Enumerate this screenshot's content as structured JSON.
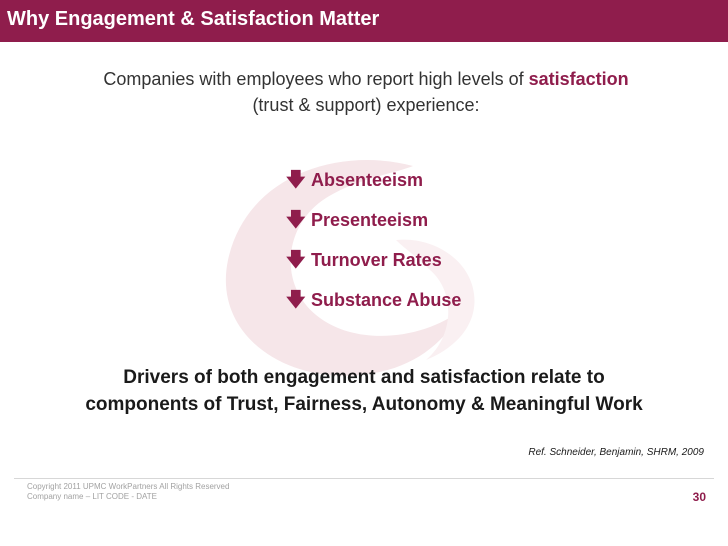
{
  "slide": {
    "title": "Why Engagement & Satisfaction Matter",
    "intro": {
      "before": "Companies with employees who report high levels of ",
      "highlight": "satisfaction",
      "after": "(trust & support) experience:"
    },
    "effects": [
      {
        "icon": "arrow-down-icon",
        "label": "Absenteeism"
      },
      {
        "icon": "arrow-down-icon",
        "label": "Presenteeism"
      },
      {
        "icon": "arrow-down-icon",
        "label": "Turnover Rates"
      },
      {
        "icon": "arrow-down-icon",
        "label": "Substance Abuse"
      }
    ],
    "drivers": {
      "line1": "Drivers of both engagement and satisfaction relate to",
      "line2": "components of Trust, Fairness, Autonomy & Meaningful Work"
    },
    "reference": "Ref. Schneider, Benjamin, SHRM, 2009",
    "footer": {
      "copyright_line1": "Copyright 2011 UPMC WorkPartners All Rights Reserved",
      "copyright_line2": "Company name – LIT CODE - DATE",
      "page_number": "30"
    }
  },
  "colors": {
    "accent": "#8f1d4c",
    "text": "#333333",
    "swoosh": "#f6e6e9",
    "footer_text": "#a2a2a2"
  }
}
